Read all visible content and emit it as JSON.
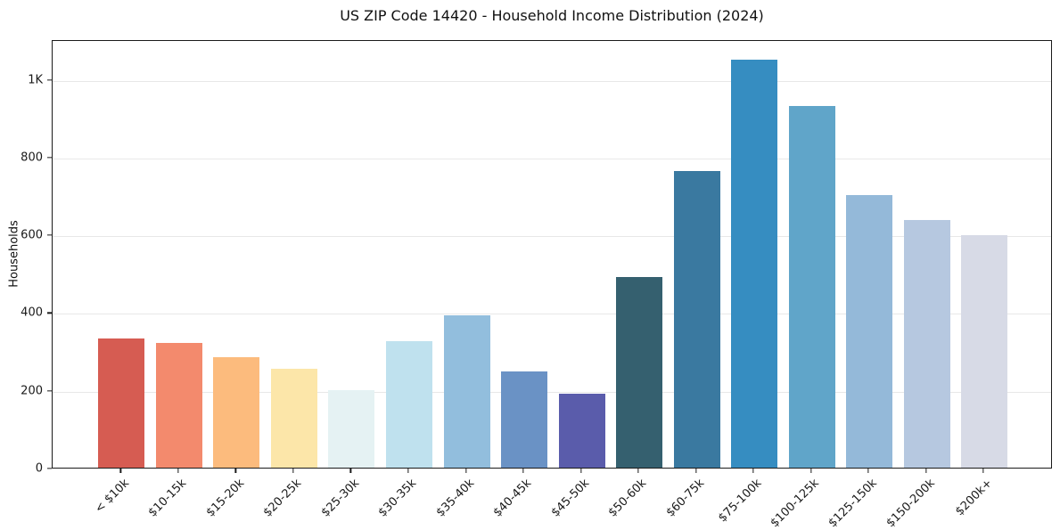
{
  "chart_data": {
    "type": "bar",
    "title": "US ZIP Code 14420 - Household Income Distribution (2024)",
    "xlabel": "",
    "ylabel": "Households",
    "categories": [
      "< $10k",
      "$10-15k",
      "$15-20k",
      "$20-25k",
      "$25-30k",
      "$30-35k",
      "$35-40k",
      "$40-45k",
      "$45-50k",
      "$50-60k",
      "$60-75k",
      "$75-100k",
      "$100-125k",
      "$125-150k",
      "$150-200k",
      "$200k+"
    ],
    "values": [
      333,
      321,
      285,
      254,
      199,
      326,
      391,
      248,
      190,
      490,
      763,
      1050,
      930,
      700,
      637,
      598
    ],
    "bar_colors": [
      "#d65c52",
      "#f38a6d",
      "#fcbb7d",
      "#fce6a9",
      "#e5f2f3",
      "#bfe1ee",
      "#92bedd",
      "#6a92c5",
      "#5a5cab",
      "#35606f",
      "#3a79a0",
      "#368dc1",
      "#60a5c9",
      "#94b9d9",
      "#b6c8e0",
      "#d7dae6"
    ],
    "ylim": [
      0,
      1102
    ],
    "ytick_values": [
      0,
      200,
      400,
      600,
      800,
      1000
    ],
    "ytick_labels": [
      "0",
      "200",
      "400",
      "600",
      "800",
      "1K"
    ],
    "x_tick_rotation": 45,
    "grid": "horizontal",
    "grid_color": "#e8e8e8",
    "frame_color": "#1a1a1a",
    "background": "#ffffff",
    "legend": "none"
  }
}
